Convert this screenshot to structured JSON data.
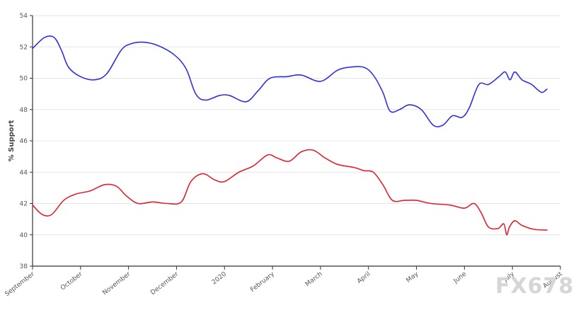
{
  "chart_data": {
    "type": "line",
    "title": "",
    "xlabel": "",
    "ylabel": "% Support",
    "ylim": [
      38,
      54
    ],
    "yticks": [
      38,
      40,
      42,
      44,
      46,
      48,
      50,
      52,
      54
    ],
    "x_domain": [
      0,
      11
    ],
    "x_ticks": [
      {
        "label": "September",
        "x": 0
      },
      {
        "label": "October",
        "x": 1
      },
      {
        "label": "November",
        "x": 2
      },
      {
        "label": "December",
        "x": 3
      },
      {
        "label": "2020",
        "x": 4
      },
      {
        "label": "February",
        "x": 5
      },
      {
        "label": "March",
        "x": 6
      },
      {
        "label": "April",
        "x": 7
      },
      {
        "label": "May",
        "x": 8
      },
      {
        "label": "June",
        "x": 9
      },
      {
        "label": "July",
        "x": 10
      },
      {
        "label": "August",
        "x": 11
      }
    ],
    "grid": true,
    "legend": "none",
    "series": [
      {
        "name": "Blue series",
        "color": "#2f2fe0",
        "points": [
          [
            0.0,
            51.9
          ],
          [
            0.25,
            52.6
          ],
          [
            0.45,
            52.6
          ],
          [
            0.6,
            51.8
          ],
          [
            0.75,
            50.7
          ],
          [
            1.0,
            50.1
          ],
          [
            1.3,
            49.9
          ],
          [
            1.55,
            50.3
          ],
          [
            1.85,
            51.8
          ],
          [
            2.05,
            52.2
          ],
          [
            2.3,
            52.3
          ],
          [
            2.6,
            52.1
          ],
          [
            2.95,
            51.5
          ],
          [
            3.2,
            50.6
          ],
          [
            3.4,
            49.0
          ],
          [
            3.6,
            48.6
          ],
          [
            3.9,
            48.9
          ],
          [
            4.1,
            48.9
          ],
          [
            4.45,
            48.5
          ],
          [
            4.7,
            49.2
          ],
          [
            4.95,
            50.0
          ],
          [
            5.3,
            50.1
          ],
          [
            5.6,
            50.2
          ],
          [
            6.0,
            49.8
          ],
          [
            6.35,
            50.5
          ],
          [
            6.6,
            50.7
          ],
          [
            6.9,
            50.7
          ],
          [
            7.1,
            50.2
          ],
          [
            7.3,
            49.1
          ],
          [
            7.45,
            47.9
          ],
          [
            7.65,
            48.0
          ],
          [
            7.85,
            48.3
          ],
          [
            8.1,
            48.0
          ],
          [
            8.35,
            47.0
          ],
          [
            8.55,
            47.0
          ],
          [
            8.75,
            47.6
          ],
          [
            8.95,
            47.5
          ],
          [
            9.1,
            48.1
          ],
          [
            9.3,
            49.6
          ],
          [
            9.5,
            49.6
          ],
          [
            9.72,
            50.1
          ],
          [
            9.85,
            50.4
          ],
          [
            9.95,
            49.9
          ],
          [
            10.05,
            50.4
          ],
          [
            10.2,
            49.9
          ],
          [
            10.4,
            49.6
          ],
          [
            10.6,
            49.1
          ],
          [
            10.72,
            49.3
          ]
        ]
      },
      {
        "name": "Red series",
        "color": "#e0202e",
        "points": [
          [
            0.0,
            41.9
          ],
          [
            0.2,
            41.3
          ],
          [
            0.4,
            41.3
          ],
          [
            0.65,
            42.2
          ],
          [
            0.9,
            42.6
          ],
          [
            1.2,
            42.8
          ],
          [
            1.5,
            43.2
          ],
          [
            1.75,
            43.1
          ],
          [
            1.95,
            42.5
          ],
          [
            2.2,
            42.0
          ],
          [
            2.5,
            42.1
          ],
          [
            2.8,
            42.0
          ],
          [
            3.1,
            42.1
          ],
          [
            3.3,
            43.4
          ],
          [
            3.55,
            43.9
          ],
          [
            3.8,
            43.5
          ],
          [
            4.0,
            43.4
          ],
          [
            4.3,
            44.0
          ],
          [
            4.6,
            44.4
          ],
          [
            4.9,
            45.1
          ],
          [
            5.1,
            44.9
          ],
          [
            5.35,
            44.7
          ],
          [
            5.6,
            45.3
          ],
          [
            5.85,
            45.4
          ],
          [
            6.1,
            44.9
          ],
          [
            6.35,
            44.5
          ],
          [
            6.7,
            44.3
          ],
          [
            6.9,
            44.1
          ],
          [
            7.1,
            44.0
          ],
          [
            7.3,
            43.2
          ],
          [
            7.5,
            42.2
          ],
          [
            7.75,
            42.2
          ],
          [
            8.0,
            42.2
          ],
          [
            8.3,
            42.0
          ],
          [
            8.7,
            41.9
          ],
          [
            9.0,
            41.7
          ],
          [
            9.2,
            42.0
          ],
          [
            9.35,
            41.4
          ],
          [
            9.5,
            40.5
          ],
          [
            9.7,
            40.4
          ],
          [
            9.82,
            40.7
          ],
          [
            9.88,
            40.0
          ],
          [
            9.94,
            40.5
          ],
          [
            10.05,
            40.9
          ],
          [
            10.2,
            40.6
          ],
          [
            10.45,
            40.35
          ],
          [
            10.72,
            40.3
          ]
        ]
      }
    ]
  },
  "watermark": "FX678"
}
